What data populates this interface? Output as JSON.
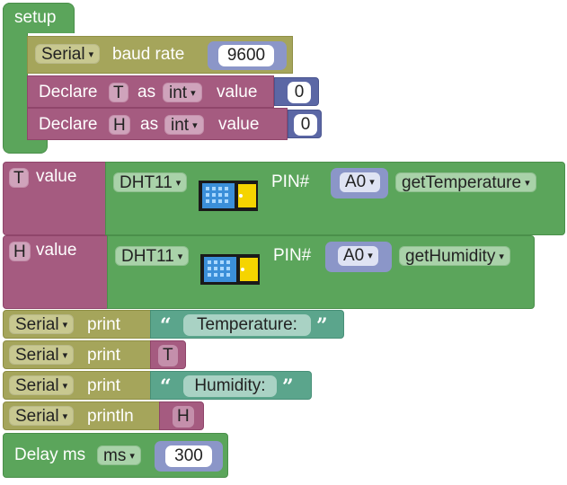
{
  "setup_block": {
    "label": "setup",
    "serial_begin": {
      "port": "Serial",
      "label": "baud rate",
      "baud": "9600"
    },
    "declare_t": {
      "label": "Declare",
      "var": "T",
      "as": "as",
      "type": "int",
      "value_label": "value",
      "value": "0"
    },
    "declare_h": {
      "label": "Declare",
      "var": "H",
      "as": "as",
      "type": "int",
      "value_label": "value",
      "value": "0"
    }
  },
  "set_t": {
    "var": "T",
    "label": "value",
    "sensor": "DHT11",
    "pin_label": "PIN#",
    "pin": "A0",
    "function": "getTemperature"
  },
  "set_h": {
    "var": "H",
    "label": "value",
    "sensor": "DHT11",
    "pin_label": "PIN#",
    "pin": "A0",
    "function": "getHumidity"
  },
  "prints": [
    {
      "port": "Serial",
      "action": "print",
      "kind": "text",
      "open_quote": "“",
      "text": "Temperature:",
      "close_quote": "”"
    },
    {
      "port": "Serial",
      "action": "print",
      "kind": "var",
      "text": "T"
    },
    {
      "port": "Serial",
      "action": "print",
      "kind": "text",
      "open_quote": "“",
      "text": "Humidity:",
      "close_quote": "”"
    },
    {
      "port": "Serial",
      "action": "println",
      "kind": "var",
      "text": "H"
    }
  ],
  "delay": {
    "label": "Delay ms",
    "unit": "ms",
    "value": "300"
  },
  "icons": {
    "dropdown": "▾",
    "sensor": "dht11-sensor-icon"
  }
}
